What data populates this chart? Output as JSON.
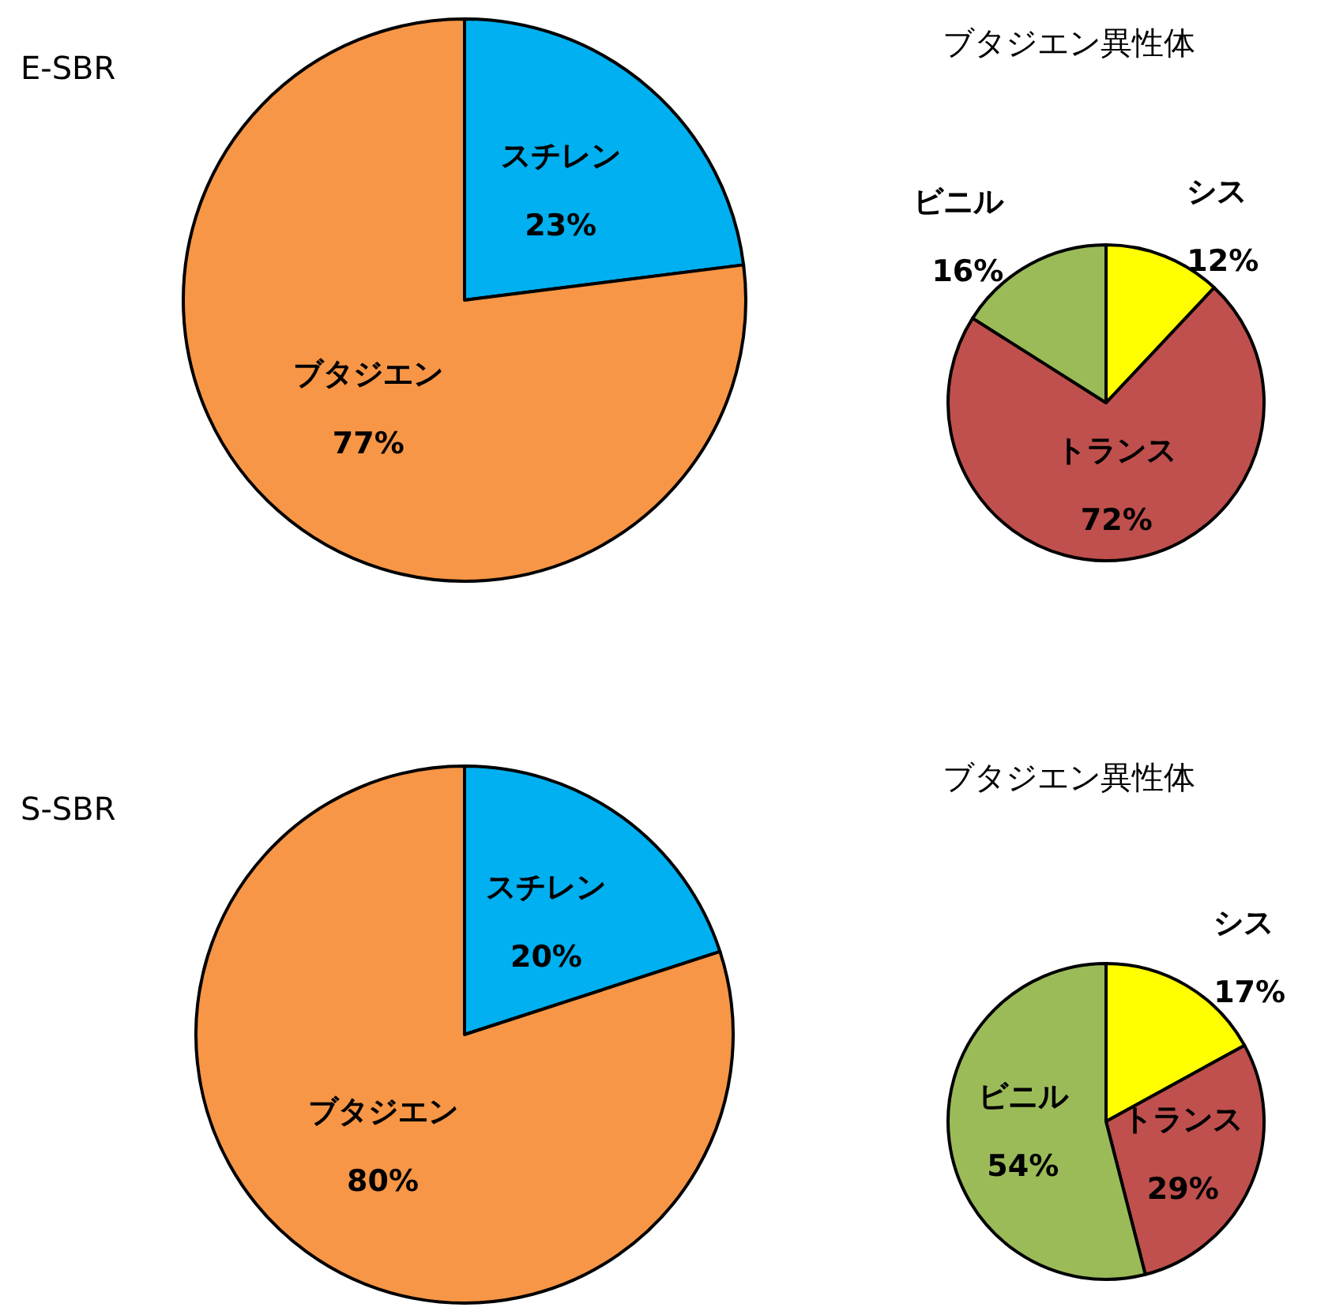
{
  "chart_data": [
    {
      "type": "pie",
      "title": "E-SBR",
      "categories": [
        "スチレン",
        "ブタジエン"
      ],
      "values": [
        23,
        77
      ],
      "colors": [
        "#00b0f0",
        "#f79646"
      ],
      "value_labels": [
        "23%",
        "77%"
      ]
    },
    {
      "type": "pie",
      "title": "ブタジエン異性体",
      "categories": [
        "シス",
        "トランス",
        "ビニル"
      ],
      "values": [
        12,
        72,
        16
      ],
      "colors": [
        "#ffff00",
        "#c0504d",
        "#9bbb59"
      ],
      "value_labels": [
        "12%",
        "72%",
        "16%"
      ]
    },
    {
      "type": "pie",
      "title": "S-SBR",
      "categories": [
        "スチレン",
        "ブタジエン"
      ],
      "values": [
        20,
        80
      ],
      "colors": [
        "#00b0f0",
        "#f79646"
      ],
      "value_labels": [
        "20%",
        "80%"
      ]
    },
    {
      "type": "pie",
      "title": "ブタジエン異性体",
      "categories": [
        "シス",
        "トランス",
        "ビニル"
      ],
      "values": [
        17,
        29,
        54
      ],
      "colors": [
        "#ffff00",
        "#c0504d",
        "#9bbb59"
      ],
      "value_labels": [
        "17%",
        "29%",
        "54%"
      ]
    }
  ]
}
